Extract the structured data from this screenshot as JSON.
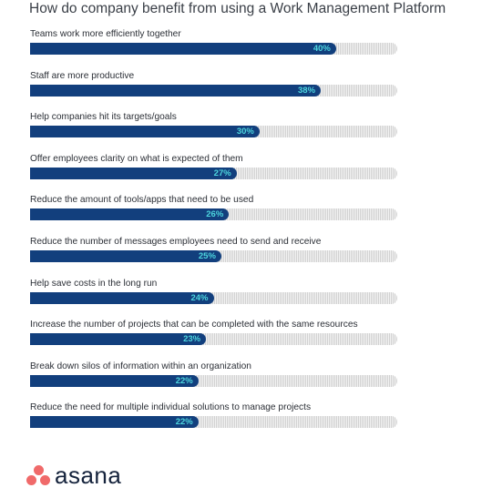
{
  "title": "How do company benefit from using a Work Management Platform",
  "brand": {
    "name": "asana",
    "icon": "asana-three-dots-icon",
    "dot_color": "#f06a6a"
  },
  "colors": {
    "bar": "#123f7d",
    "value_text": "#4dd5dd",
    "track": "#d9d9d9"
  },
  "chart_data": {
    "type": "bar",
    "orientation": "horizontal",
    "categories": [
      "Teams work more efficiently together",
      "Staff are more productive",
      "Help companies hit its targets/goals",
      "Offer employees clarity on what is expected of them",
      "Reduce the amount of tools/apps that need to be used",
      "Reduce the number of messages employees need to send and receive",
      "Help save costs in the long run",
      "Increase the number of projects that can be completed with the same resources",
      "Break down silos of information within an organization",
      "Reduce the need for multiple individual solutions to manage projects"
    ],
    "values": [
      40,
      38,
      30,
      27,
      26,
      25,
      24,
      23,
      22,
      22
    ],
    "value_labels": [
      "40%",
      "38%",
      "30%",
      "27%",
      "26%",
      "25%",
      "24%",
      "23%",
      "22%",
      "22%"
    ],
    "unit": "%",
    "title": "How do company benefit from using a Work Management Platform",
    "xlabel": "",
    "ylabel": "",
    "xlim": [
      0,
      40
    ],
    "grid": false,
    "legend": "none"
  }
}
